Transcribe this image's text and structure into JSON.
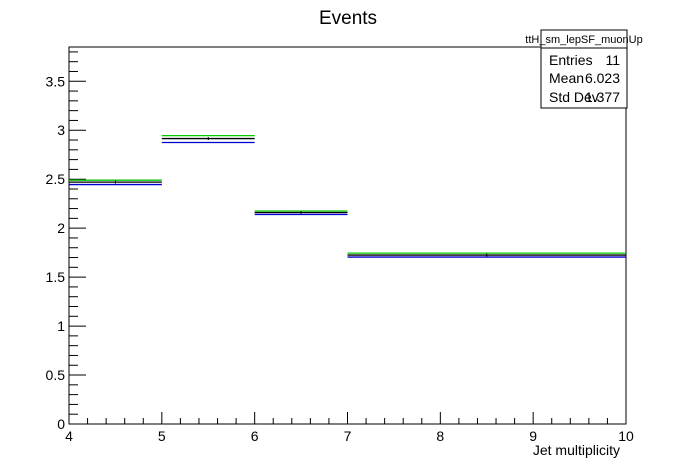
{
  "chart_data": {
    "type": "step",
    "title": "Events",
    "xlabel": "Jet multiplicity",
    "ylabel": "",
    "xlim": [
      4,
      10
    ],
    "ylim": [
      0,
      3.85
    ],
    "x_ticks": [
      4,
      5,
      6,
      7,
      8,
      9,
      10
    ],
    "y_ticks": [
      0,
      0.5,
      1,
      1.5,
      2,
      2.5,
      3,
      3.5
    ],
    "bins": [
      [
        4,
        5
      ],
      [
        5,
        6
      ],
      [
        6,
        7
      ],
      [
        7,
        10
      ]
    ],
    "series": [
      {
        "color": "#00cc00",
        "values": [
          2.49,
          2.945,
          2.175,
          1.745
        ]
      },
      {
        "color": "#000000",
        "values": [
          2.47,
          2.915,
          2.16,
          1.725
        ]
      },
      {
        "color": "#0000cc",
        "values": [
          2.445,
          2.875,
          2.14,
          1.705
        ]
      }
    ],
    "stats_box": {
      "title": "ttH_sm_lepSF_muonUp",
      "rows": [
        {
          "label": "Entries",
          "value": "11"
        },
        {
          "label": "Mean",
          "value": "6.023"
        },
        {
          "label": "Std Dev",
          "value": "1.377"
        }
      ]
    }
  }
}
